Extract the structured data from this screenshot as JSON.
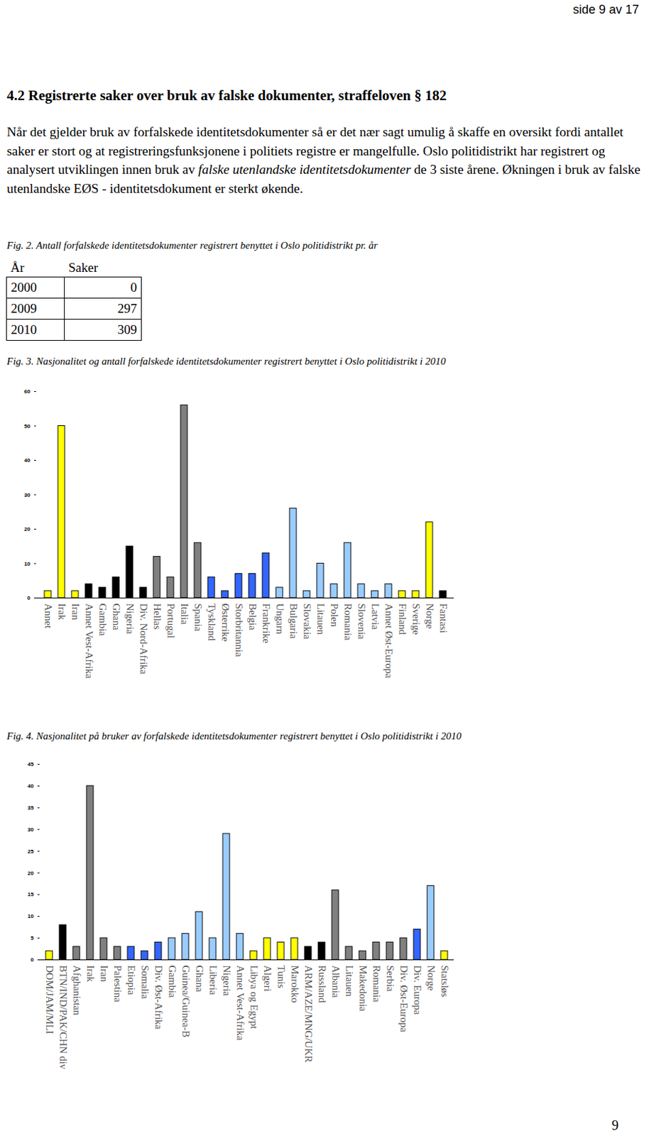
{
  "page_header": "side 9 av 17",
  "heading": "4.2 Registrerte saker over bruk av falske dokumenter, straffeloven § 182",
  "paragraph": [
    {
      "text": "Når det gjelder bruk av forfalskede identitetsdokumenter så er det nær sagt umulig å skaffe en oversikt fordi antallet saker er stort og at registreringsfunksjonene i politiets registre er mangelfulle. Oslo politidistrikt har registrert og analysert utviklingen innen bruk av ",
      "italic": false
    },
    {
      "text": "falske utenlandske identitetsdokumenter",
      "italic": true
    },
    {
      "text": " de 3 siste årene. Økningen i bruk av falske utenlandske EØS - identitetsdokument er sterkt økende.",
      "italic": false
    }
  ],
  "fig2": {
    "caption": "Fig. 2. Antall forfalskede identitetsdokumenter registrert benyttet i Oslo politidistrikt pr. år",
    "table": {
      "columns": [
        "År",
        "Saker"
      ],
      "rows": [
        [
          2000,
          0
        ],
        [
          2009,
          297
        ],
        [
          2010,
          309
        ]
      ]
    }
  },
  "chart_data": [
    {
      "type": "bar",
      "title": "Fig. 3. Nasjonalitet og antall forfalskede identitetsdokumenter registrert benyttet i Oslo politidistrikt i 2010",
      "categories": [
        "Annet",
        "Irak",
        "Iran",
        "Annet Vest-Afrika",
        "Gambia",
        "Ghana",
        "Nigeria",
        "Div. Nord-Afrika",
        "Hellas",
        "Portugal",
        "Italia",
        "Spania",
        "Tyskland",
        "Østerrike",
        "Storbritannia",
        "Belgia",
        "Frankrike",
        "Ungarn",
        "Bulgaria",
        "Slovakia",
        "Litauen",
        "Polen",
        "Romania",
        "Slovenia",
        "Latvia",
        "Annet Øst-Europa",
        "Finland",
        "Sverige",
        "Norge",
        "Fantasi"
      ],
      "values": [
        2,
        50,
        2,
        4,
        3,
        6,
        15,
        3,
        12,
        6,
        56,
        16,
        6,
        2,
        7,
        7,
        13,
        3,
        26,
        2,
        10,
        4,
        16,
        4,
        2,
        4,
        2,
        2,
        22,
        2
      ],
      "colors": [
        "#ffff00",
        "#ffff00",
        "#ffff00",
        "#000000",
        "#000000",
        "#000000",
        "#000000",
        "#000000",
        "#808080",
        "#808080",
        "#808080",
        "#808080",
        "#3366ff",
        "#3366ff",
        "#3366ff",
        "#3366ff",
        "#3366ff",
        "#99ccff",
        "#99ccff",
        "#99ccff",
        "#99ccff",
        "#99ccff",
        "#99ccff",
        "#99ccff",
        "#99ccff",
        "#99ccff",
        "#ffff00",
        "#ffff00",
        "#ffff00",
        "#000000"
      ],
      "ylim": [
        0,
        60
      ],
      "yticks": [
        0,
        10,
        20,
        30,
        40,
        50,
        60
      ],
      "grid": false
    },
    {
      "type": "bar",
      "title": "Fig. 4. Nasjonalitet på bruker av forfalskede identitetsdokumenter registrert benyttet i Oslo politidistrikt i 2010",
      "categories": [
        "DOM/JAM/MLI",
        "BTN/IND/PAK/CHN div",
        "Afghanistan",
        "Irak",
        "Iran",
        "Palestina",
        "Etiopia",
        "Somalia",
        "Div. Øst-Afrika",
        "Gambia",
        "Guinea/Guinea-B",
        "Ghana",
        "Liberia",
        "Nigeria",
        "Annet Vest-Afrika",
        "Libya og Egypt",
        "Algeri",
        "Tunis",
        "Marokko",
        "ARM/AZE/MNG/UKR",
        "Russland",
        "Albania",
        "Litauen",
        "Makedonia",
        "Romania",
        "Serbia",
        "Div. Øst-Europa",
        "Div. Europa",
        "Norge",
        "Statsløs"
      ],
      "values": [
        2,
        8,
        3,
        40,
        5,
        3,
        3,
        2,
        4,
        5,
        6,
        11,
        5,
        29,
        6,
        2,
        5,
        4,
        5,
        3,
        4,
        16,
        3,
        2,
        4,
        4,
        5,
        7,
        17,
        2
      ],
      "colors": [
        "#ffff00",
        "#000000",
        "#808080",
        "#808080",
        "#808080",
        "#808080",
        "#3366ff",
        "#3366ff",
        "#3366ff",
        "#99ccff",
        "#99ccff",
        "#99ccff",
        "#99ccff",
        "#99ccff",
        "#99ccff",
        "#ffff00",
        "#ffff00",
        "#ffff00",
        "#ffff00",
        "#000000",
        "#000000",
        "#808080",
        "#808080",
        "#808080",
        "#808080",
        "#808080",
        "#808080",
        "#3366ff",
        "#99ccff",
        "#ffff00"
      ],
      "ylim": [
        0,
        45
      ],
      "yticks": [
        0,
        5,
        10,
        15,
        20,
        25,
        30,
        35,
        40,
        45
      ],
      "grid": false
    }
  ],
  "page_number": "9"
}
